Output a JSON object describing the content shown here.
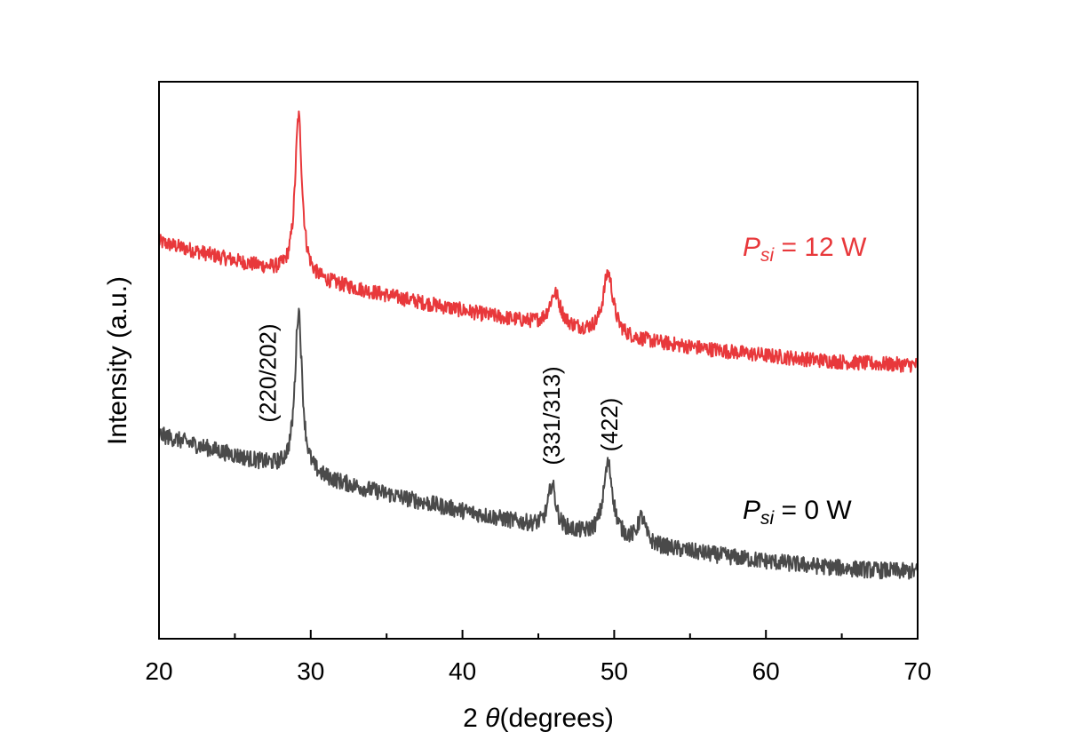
{
  "chart_data": {
    "type": "line",
    "xlabel_prefix": "2",
    "xlabel_symbol": "θ",
    "xlabel_suffix": "(degrees)",
    "ylabel": "Intensity (a.u.)",
    "xlim": [
      20,
      70
    ],
    "xticks": [
      "20",
      "30",
      "40",
      "50",
      "60",
      "70"
    ],
    "y_tick_labels_shown": false,
    "grid": false,
    "series": [
      {
        "label_prefix": "P",
        "label_sub": "si",
        "label_suffix": " = 12 W",
        "color": "#e8383b",
        "base_at_20": 8.55,
        "base_at_70": 5.9,
        "noise": 0.16,
        "peaks": [
          {
            "x": 29.2,
            "height": 3.45,
            "width": 0.28
          },
          {
            "x": 46.1,
            "height": 0.72,
            "width": 0.45
          },
          {
            "x": 49.6,
            "height": 1.35,
            "width": 0.4
          }
        ]
      },
      {
        "label_prefix": "P",
        "label_sub": "si",
        "label_suffix": " = 0 W",
        "color": "#4a4a4a",
        "base_at_20": 4.4,
        "base_at_70": 1.45,
        "noise": 0.18,
        "peaks": [
          {
            "x": 29.2,
            "height": 3.5,
            "width": 0.28
          },
          {
            "x": 45.9,
            "height": 0.95,
            "width": 0.3
          },
          {
            "x": 49.6,
            "height": 1.6,
            "width": 0.38
          },
          {
            "x": 51.8,
            "height": 0.55,
            "width": 0.3
          }
        ]
      }
    ],
    "annotations": [
      {
        "text": "(220/202)",
        "x": 27.7
      },
      {
        "text": "(331/313)",
        "x": 46.4
      },
      {
        "text": "(422)",
        "x": 50.2
      }
    ]
  }
}
